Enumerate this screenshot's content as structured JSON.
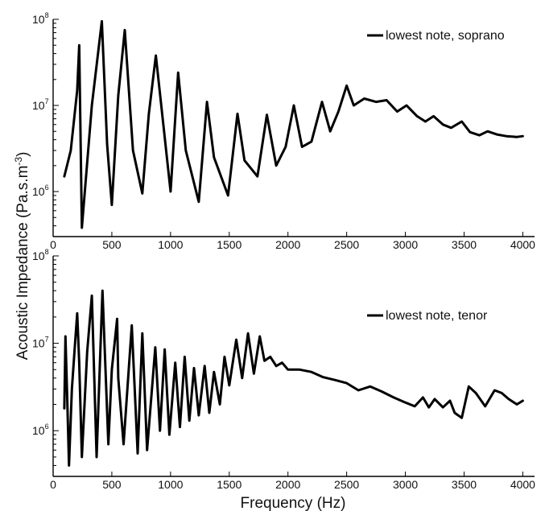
{
  "figure": {
    "xlabel": "Frequency (Hz)",
    "ylabel": "Acoustic Impedance (Pa.s.m",
    "ylabel_sup": "-3",
    "ylabel_close": ")"
  },
  "colors": {
    "line": "#000000",
    "axis": "#000000",
    "background": "#ffffff"
  },
  "chart_data": [
    {
      "type": "line",
      "panel": "top",
      "legend": "lowest note, soprano",
      "legend_position": "top-right",
      "xlim": [
        0,
        4100
      ],
      "ylim": [
        300000,
        100000000
      ],
      "yscale": "log",
      "xticks": [
        0,
        500,
        1000,
        1500,
        2000,
        2500,
        3000,
        3500,
        4000
      ],
      "xtick_labels": [
        "0",
        "500",
        "1000",
        "1500",
        "2000",
        "2500",
        "3000",
        "3500",
        "4000"
      ],
      "ytick_labels": [
        {
          "base": "10",
          "exp": "8"
        },
        {
          "base": "10",
          "exp": "7"
        },
        {
          "base": "10",
          "exp": "6"
        }
      ],
      "ytick_values": [
        100000000,
        10000000,
        1000000
      ],
      "series": [
        {
          "name": "lowest note, soprano",
          "x": [
            95,
            150,
            205,
            222,
            245,
            330,
            415,
            460,
            500,
            555,
            610,
            680,
            760,
            815,
            875,
            1000,
            1065,
            1130,
            1240,
            1310,
            1370,
            1490,
            1570,
            1630,
            1740,
            1820,
            1900,
            1980,
            2050,
            2120,
            2200,
            2290,
            2360,
            2430,
            2500,
            2560,
            2650,
            2750,
            2840,
            2930,
            3010,
            3100,
            3170,
            3240,
            3320,
            3390,
            3480,
            3550,
            3630,
            3700,
            3780,
            3860,
            3950,
            4000
          ],
          "y": [
            1500000,
            3000000,
            15000000,
            50000000,
            380000,
            10000000,
            95000000,
            3500000,
            700000,
            13000000,
            75000000,
            3000000,
            950000,
            8000000,
            38000000,
            1000000,
            24000000,
            3000000,
            760000,
            11000000,
            2500000,
            900000,
            8000000,
            2300000,
            1500000,
            7800000,
            2000000,
            3300000,
            10000000,
            3300000,
            3800000,
            11000000,
            5000000,
            8500000,
            17000000,
            10000000,
            12000000,
            11000000,
            11500000,
            8500000,
            10000000,
            7500000,
            6500000,
            7500000,
            6000000,
            5500000,
            6500000,
            4900000,
            4500000,
            5000000,
            4600000,
            4400000,
            4300000,
            4400000
          ]
        }
      ]
    },
    {
      "type": "line",
      "panel": "bottom",
      "legend": "lowest note, tenor",
      "legend_position": "top-right",
      "xlim": [
        0,
        4100
      ],
      "ylim": [
        300000,
        100000000
      ],
      "yscale": "log",
      "xticks": [
        0,
        500,
        1000,
        1500,
        2000,
        2500,
        3000,
        3500,
        4000
      ],
      "xtick_labels": [
        "0",
        "500",
        "1000",
        "1500",
        "2000",
        "2500",
        "3000",
        "3500",
        "4000"
      ],
      "ytick_labels": [
        {
          "base": "10",
          "exp": "8"
        },
        {
          "base": "10",
          "exp": "7"
        },
        {
          "base": "10",
          "exp": "6"
        }
      ],
      "ytick_values": [
        100000000,
        10000000,
        1000000
      ],
      "series": [
        {
          "name": "lowest note, tenor",
          "x": [
            95,
            105,
            118,
            135,
            160,
            182,
            205,
            222,
            245,
            290,
            330,
            370,
            420,
            470,
            500,
            545,
            555,
            600,
            670,
            720,
            760,
            800,
            870,
            910,
            950,
            990,
            1040,
            1080,
            1120,
            1160,
            1200,
            1240,
            1290,
            1330,
            1370,
            1420,
            1460,
            1500,
            1560,
            1610,
            1660,
            1710,
            1760,
            1800,
            1850,
            1900,
            1950,
            2000,
            2100,
            2200,
            2300,
            2400,
            2500,
            2600,
            2700,
            2800,
            2900,
            3000,
            3080,
            3150,
            3200,
            3250,
            3320,
            3380,
            3420,
            3480,
            3540,
            3600,
            3680,
            3760,
            3820,
            3880,
            3950,
            4000
          ],
          "y": [
            1800000,
            12000000,
            3000000,
            400000,
            3000000,
            8000000,
            22000000,
            6000000,
            500000,
            8000000,
            35000000,
            500000,
            40000000,
            700000,
            5000000,
            19000000,
            4000000,
            700000,
            16000000,
            550000,
            13000000,
            600000,
            9000000,
            1000000,
            8500000,
            900000,
            6000000,
            1100000,
            7000000,
            1300000,
            5200000,
            1500000,
            5500000,
            1600000,
            4700000,
            2000000,
            7000000,
            3300000,
            11000000,
            4000000,
            13000000,
            4500000,
            12000000,
            6300000,
            7000000,
            5500000,
            6000000,
            5000000,
            5000000,
            4700000,
            4100000,
            3800000,
            3500000,
            2900000,
            3200000,
            2800000,
            2400000,
            2100000,
            1900000,
            2400000,
            1850000,
            2300000,
            1850000,
            2200000,
            1600000,
            1400000,
            3200000,
            2700000,
            1900000,
            2900000,
            2700000,
            2300000,
            2000000,
            2200000
          ]
        }
      ]
    }
  ]
}
